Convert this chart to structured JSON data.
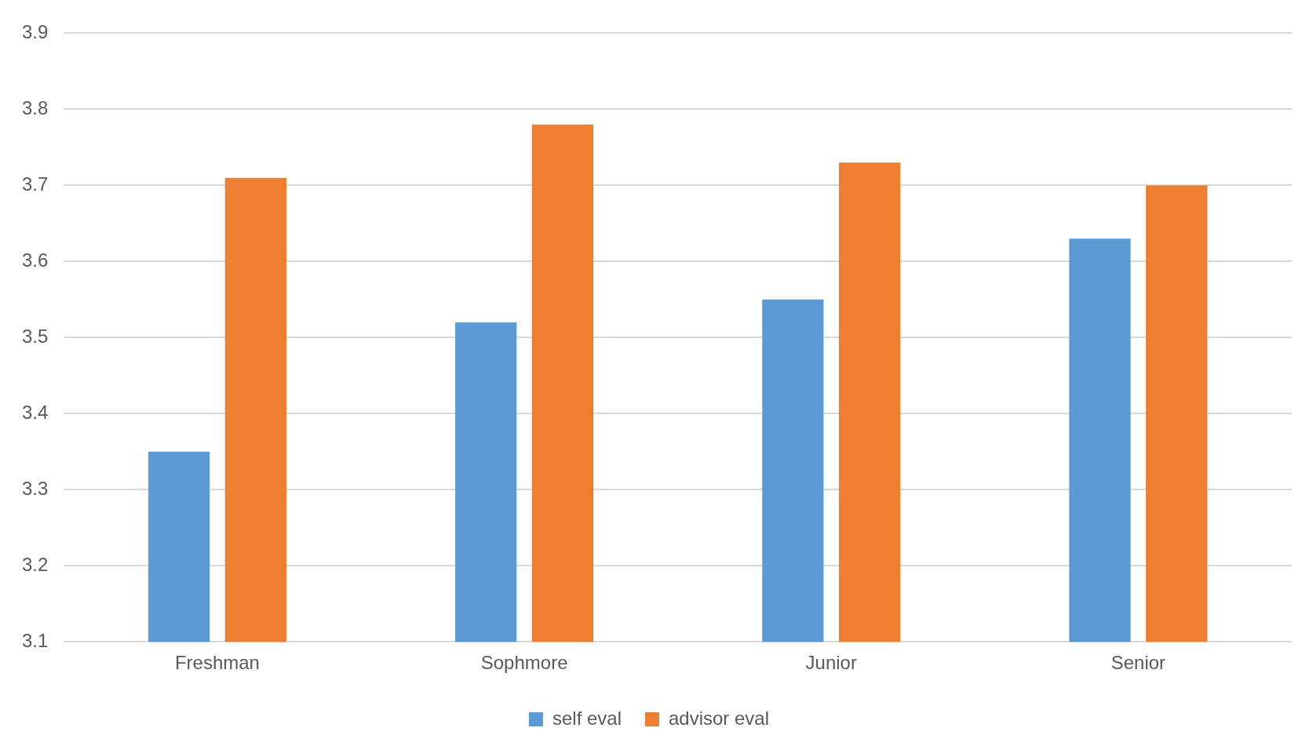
{
  "chart_data": {
    "type": "bar",
    "categories": [
      "Freshman",
      "Sophmore",
      "Junior",
      "Senior"
    ],
    "series": [
      {
        "name": "self eval",
        "color": "#5b9bd5",
        "values": [
          3.35,
          3.52,
          3.55,
          3.63
        ]
      },
      {
        "name": "advisor eval",
        "color": "#ed7d31",
        "values": [
          3.71,
          3.78,
          3.73,
          3.7
        ]
      }
    ],
    "ylim": [
      3.1,
      3.9
    ],
    "yticks": [
      3.1,
      3.2,
      3.3,
      3.4,
      3.5,
      3.6,
      3.7,
      3.8,
      3.9
    ],
    "grid": "y",
    "legend": "bottom"
  }
}
